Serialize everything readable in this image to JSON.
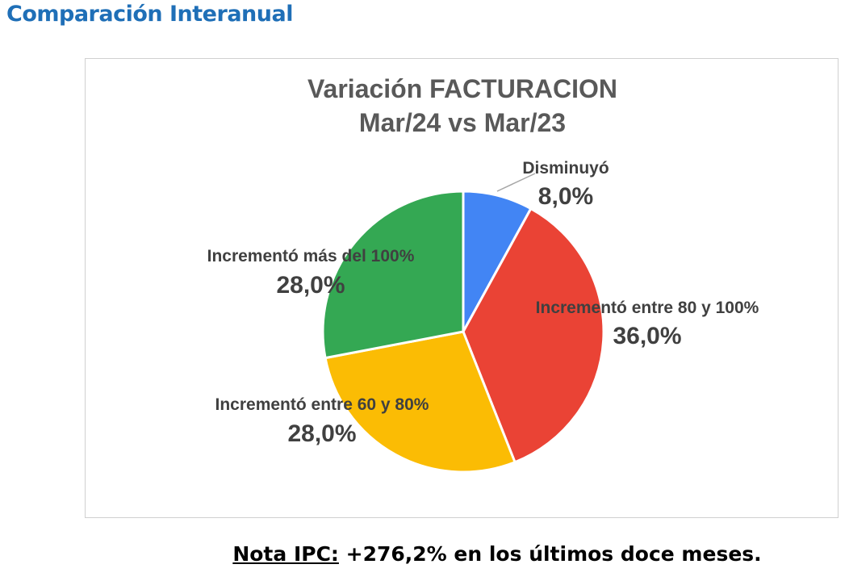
{
  "heading": "Comparación Interanual",
  "chart_data": {
    "type": "pie",
    "title": [
      "Variación FACTURACION",
      "Mar/24 vs Mar/23"
    ],
    "unit": "%",
    "slices": [
      {
        "name": "Disminuyó",
        "value": 8.0,
        "label": "8,0%",
        "color": "#4285f4"
      },
      {
        "name": "Incrementó entre 80 y 100%",
        "value": 36.0,
        "label": "36,0%",
        "color": "#ea4335"
      },
      {
        "name": "Incrementó entre 60 y 80%",
        "value": 28.0,
        "label": "28,0%",
        "color": "#fbbc04"
      },
      {
        "name": "Incrementó más del 100%",
        "value": 28.0,
        "label": "28,0%",
        "color": "#34a853"
      }
    ],
    "legend": "none"
  },
  "note": {
    "label": "Nota IPC:",
    "text": " +276,2% en los últimos doce meses."
  }
}
